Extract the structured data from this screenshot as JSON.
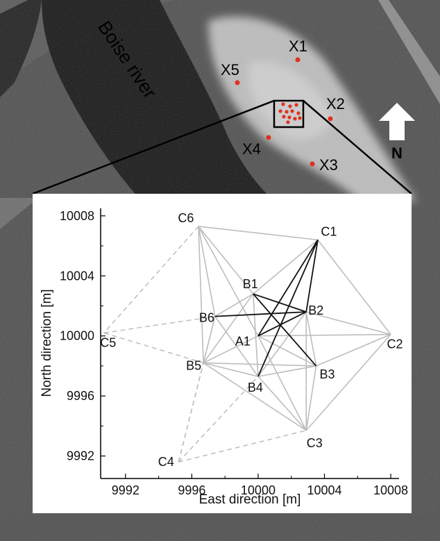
{
  "aerial": {
    "river_label": "Boise river",
    "north_label": "N",
    "colors": {
      "river": "#0f0f0f",
      "vegetation": "#4a4a4a",
      "clearing": "#c8c8c8",
      "marker": "#e0301e"
    },
    "markers": [
      {
        "label": "X1"
      },
      {
        "label": "X2"
      },
      {
        "label": "X3"
      },
      {
        "label": "X4"
      },
      {
        "label": "X5"
      }
    ]
  },
  "chart_data": {
    "type": "network",
    "xlabel": "East direction [m]",
    "ylabel": "North direction [m]",
    "xlim": [
      9990.5,
      10008.5
    ],
    "ylim": [
      9990.5,
      10008.5
    ],
    "xticks": [
      9992,
      9996,
      10000,
      10004,
      10008
    ],
    "yticks": [
      9992,
      9996,
      10000,
      10004,
      10008
    ],
    "xtick_labels": [
      "9992",
      "9996",
      "10000",
      "10004",
      "10008"
    ],
    "ytick_labels": [
      "9992",
      "9996",
      "10000",
      "10004",
      "10008"
    ],
    "colors": {
      "edge_black": "#111111",
      "edge_gray": "#bdbdbd",
      "edge_dashed": "#bdbdbd"
    },
    "nodes": [
      {
        "id": "A1",
        "label": "A1",
        "x": 10000.0,
        "y": 10000.0
      },
      {
        "id": "B1",
        "label": "B1",
        "x": 9999.7,
        "y": 10002.8
      },
      {
        "id": "B2",
        "label": "B2",
        "x": 10002.9,
        "y": 10001.6
      },
      {
        "id": "B3",
        "label": "B3",
        "x": 10003.5,
        "y": 9998.0
      },
      {
        "id": "B4",
        "label": "B4",
        "x": 10000.0,
        "y": 9997.3
      },
      {
        "id": "B5",
        "label": "B5",
        "x": 9996.7,
        "y": 9998.2
      },
      {
        "id": "B6",
        "label": "B6",
        "x": 9997.4,
        "y": 10001.3
      },
      {
        "id": "C1",
        "label": "C1",
        "x": 10003.6,
        "y": 10006.4
      },
      {
        "id": "C2",
        "label": "C2",
        "x": 10008.0,
        "y": 10000.1
      },
      {
        "id": "C3",
        "label": "C3",
        "x": 10002.9,
        "y": 9993.7
      },
      {
        "id": "C4",
        "label": "C4",
        "x": 9995.2,
        "y": 9991.6
      },
      {
        "id": "C5",
        "label": "C5",
        "x": 9990.7,
        "y": 10000.2
      },
      {
        "id": "C6",
        "label": "C6",
        "x": 9996.4,
        "y": 10007.3
      }
    ],
    "edges": [
      {
        "from": "C1",
        "to": "B2",
        "style": "black"
      },
      {
        "from": "C1",
        "to": "A1",
        "style": "black"
      },
      {
        "from": "C1",
        "to": "B4",
        "style": "black"
      },
      {
        "from": "B1",
        "to": "B2",
        "style": "black"
      },
      {
        "from": "B1",
        "to": "B3",
        "style": "black"
      },
      {
        "from": "B6",
        "to": "B2",
        "style": "black"
      },
      {
        "from": "A1",
        "to": "B2",
        "style": "black"
      },
      {
        "from": "C6",
        "to": "C1",
        "style": "gray"
      },
      {
        "from": "C1",
        "to": "C2",
        "style": "gray"
      },
      {
        "from": "C2",
        "to": "C3",
        "style": "gray"
      },
      {
        "from": "C6",
        "to": "B1",
        "style": "gray"
      },
      {
        "from": "C6",
        "to": "B6",
        "style": "gray"
      },
      {
        "from": "C6",
        "to": "B5",
        "style": "gray"
      },
      {
        "from": "C6",
        "to": "A1",
        "style": "gray"
      },
      {
        "from": "C1",
        "to": "B1",
        "style": "gray"
      },
      {
        "from": "B2",
        "to": "C2",
        "style": "gray"
      },
      {
        "from": "B2",
        "to": "B3",
        "style": "gray"
      },
      {
        "from": "B2",
        "to": "C3",
        "style": "gray"
      },
      {
        "from": "B2",
        "to": "B4",
        "style": "gray"
      },
      {
        "from": "B3",
        "to": "C2",
        "style": "gray"
      },
      {
        "from": "B3",
        "to": "C3",
        "style": "gray"
      },
      {
        "from": "A1",
        "to": "C2",
        "style": "gray"
      },
      {
        "from": "A1",
        "to": "C3",
        "style": "gray"
      },
      {
        "from": "A1",
        "to": "B5",
        "style": "gray"
      },
      {
        "from": "A1",
        "to": "B3",
        "style": "gray"
      },
      {
        "from": "B5",
        "to": "B4",
        "style": "gray"
      },
      {
        "from": "B5",
        "to": "B3",
        "style": "gray"
      },
      {
        "from": "B5",
        "to": "B1",
        "style": "gray"
      },
      {
        "from": "B5",
        "to": "B6",
        "style": "gray"
      },
      {
        "from": "B5",
        "to": "C3",
        "style": "gray"
      },
      {
        "from": "B6",
        "to": "B1",
        "style": "gray"
      },
      {
        "from": "B6",
        "to": "B4",
        "style": "gray"
      },
      {
        "from": "B4",
        "to": "B3",
        "style": "gray"
      },
      {
        "from": "B4",
        "to": "C3",
        "style": "gray"
      },
      {
        "from": "B1",
        "to": "B4",
        "style": "gray"
      },
      {
        "from": "C6",
        "to": "C5",
        "style": "dashed"
      },
      {
        "from": "C5",
        "to": "B6",
        "style": "dashed"
      },
      {
        "from": "C5",
        "to": "B5",
        "style": "dashed"
      },
      {
        "from": "C4",
        "to": "B5",
        "style": "dashed"
      },
      {
        "from": "C4",
        "to": "B4",
        "style": "dashed"
      },
      {
        "from": "C4",
        "to": "C3",
        "style": "dashed"
      },
      {
        "from": "C4",
        "to": "B6",
        "style": "dashed"
      }
    ]
  }
}
